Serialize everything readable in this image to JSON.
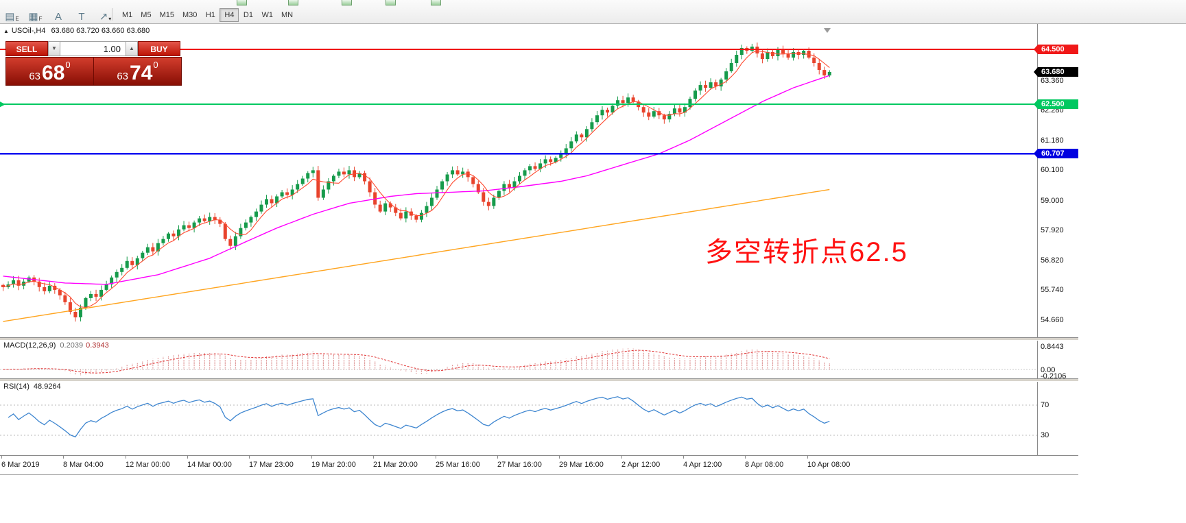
{
  "toolbar": {
    "icons": [
      {
        "name": "indicators-e-icon",
        "glyph": "▤",
        "sub": "E"
      },
      {
        "name": "grid-f-icon",
        "glyph": "▦",
        "sub": "F"
      },
      {
        "name": "text-a-icon",
        "glyph": "A",
        "sub": ""
      },
      {
        "name": "textbox-t-icon",
        "glyph": "T",
        "sub": ""
      },
      {
        "name": "shapes-dropdown-icon",
        "glyph": "↗",
        "sub": "▾"
      }
    ],
    "timeframes": [
      "M1",
      "M5",
      "M15",
      "M30",
      "H1",
      "H4",
      "D1",
      "W1",
      "MN"
    ],
    "selected_timeframe": "H4"
  },
  "chart": {
    "collapse_icon": "▲",
    "symbol_title": "USOil-,H4",
    "ohlc": "63.680 63.720 63.660 63.680"
  },
  "trade_panel": {
    "sell_label": "SELL",
    "buy_label": "BUY",
    "volume_value": "1.00",
    "volume_down_icon": "▼",
    "volume_up_icon": "▲",
    "sell_price_prefix": "63",
    "sell_price_big": "68",
    "sell_price_sup": "0",
    "buy_price_prefix": "63",
    "buy_price_big": "74",
    "buy_price_sup": "0"
  },
  "annotation": {
    "text": "多空转折点62.5",
    "color": "#ff1212"
  },
  "price_axis": {
    "grid_labels": [
      {
        "text": "63.360",
        "price": 63.36
      },
      {
        "text": "62.280",
        "price": 62.28
      },
      {
        "text": "61.180",
        "price": 61.18
      },
      {
        "text": "60.100",
        "price": 60.1
      },
      {
        "text": "59.000",
        "price": 59.0
      },
      {
        "text": "57.920",
        "price": 57.92
      },
      {
        "text": "56.820",
        "price": 56.82
      },
      {
        "text": "55.740",
        "price": 55.74
      },
      {
        "text": "54.660",
        "price": 54.66
      }
    ],
    "tags": [
      {
        "text": "64.500",
        "price": 64.5,
        "bg": "#f01818"
      },
      {
        "text": "63.680",
        "price": 63.68,
        "bg": "#000000"
      },
      {
        "text": "62.500",
        "price": 62.5,
        "bg": "#00c860"
      },
      {
        "text": "60.707",
        "price": 60.707,
        "bg": "#0000e0"
      }
    ]
  },
  "macd_panel": {
    "name": "MACD(12,26,9)",
    "value_main": "0.2039",
    "value_signal": "0.3943",
    "axis_labels": [
      {
        "text": "0.8443",
        "value": 0.8443
      },
      {
        "text": "0.00",
        "value": 0
      },
      {
        "text": "-0.2106",
        "value": -0.2106
      }
    ]
  },
  "rsi_panel": {
    "name": "RSI(14)",
    "value": "48.9264",
    "levels": [
      {
        "text": "70",
        "value": 70
      },
      {
        "text": "30",
        "value": 30
      }
    ]
  },
  "time_axis": {
    "ticks": [
      {
        "i": 0,
        "label": "6 Mar 2019"
      },
      {
        "i": 12,
        "label": "8 Mar 04:00"
      },
      {
        "i": 24,
        "label": "12 Mar 00:00"
      },
      {
        "i": 36,
        "label": "14 Mar 00:00"
      },
      {
        "i": 48,
        "label": "17 Mar 23:00"
      },
      {
        "i": 60,
        "label": "19 Mar 20:00"
      },
      {
        "i": 72,
        "label": "21 Mar 20:00"
      },
      {
        "i": 84,
        "label": "25 Mar 16:00"
      },
      {
        "i": 96,
        "label": "27 Mar 16:00"
      },
      {
        "i": 108,
        "label": "29 Mar 16:00"
      },
      {
        "i": 120,
        "label": "2 Apr 12:00"
      },
      {
        "i": 132,
        "label": "4 Apr 12:00"
      },
      {
        "i": 144,
        "label": "8 Apr 08:00"
      },
      {
        "i": 156,
        "label": "10 Apr 08:00"
      }
    ]
  },
  "chart_data": {
    "type": "candlestick",
    "title": "USOil-,H4",
    "symbol": "USOil-",
    "timeframe": "H4",
    "ylim": [
      54.3,
      64.95
    ],
    "hlines": [
      64.5,
      62.5,
      60.707
    ],
    "colors": {
      "up": "#169b4b",
      "down": "#e8432c",
      "fast_ma": "#ff4a30",
      "mid_ma": "#ff00ff",
      "slow_ma": "#ffa520",
      "macd_hist": "#dc9090",
      "macd_signal": "#e03030",
      "rsi": "#3e86d0",
      "hline_red": "#f01818",
      "hline_green": "#00c860",
      "hline_blue": "#0000f0"
    },
    "closes": [
      55.85,
      55.95,
      56.1,
      55.9,
      56.05,
      56.2,
      56.05,
      55.85,
      55.7,
      55.9,
      55.75,
      55.55,
      55.3,
      54.95,
      54.75,
      55.1,
      55.45,
      55.6,
      55.5,
      55.75,
      55.95,
      56.2,
      56.4,
      56.55,
      56.8,
      56.65,
      56.9,
      57.1,
      57.3,
      57.15,
      57.45,
      57.6,
      57.8,
      57.7,
      57.95,
      58.1,
      58.0,
      58.2,
      58.35,
      58.25,
      58.4,
      58.3,
      58.15,
      57.6,
      57.35,
      57.7,
      58.0,
      58.2,
      58.4,
      58.6,
      58.85,
      59.05,
      58.9,
      59.15,
      59.3,
      59.2,
      59.4,
      59.6,
      59.8,
      60.0,
      60.1,
      59.1,
      59.4,
      59.7,
      59.9,
      60.05,
      59.95,
      60.1,
      59.85,
      60.0,
      59.7,
      59.3,
      58.85,
      58.6,
      58.9,
      58.75,
      58.55,
      58.35,
      58.6,
      58.45,
      58.3,
      58.55,
      58.8,
      59.1,
      59.4,
      59.7,
      59.95,
      60.1,
      59.95,
      60.05,
      59.85,
      59.6,
      59.3,
      58.95,
      58.8,
      59.1,
      59.35,
      59.6,
      59.45,
      59.7,
      59.9,
      60.1,
      60.25,
      60.15,
      60.35,
      60.5,
      60.4,
      60.55,
      60.7,
      60.9,
      61.15,
      61.4,
      61.3,
      61.6,
      61.85,
      62.1,
      62.3,
      62.2,
      62.45,
      62.65,
      62.55,
      62.75,
      62.6,
      62.4,
      62.2,
      62.05,
      62.25,
      62.1,
      61.95,
      62.15,
      62.35,
      62.2,
      62.4,
      62.7,
      63.0,
      63.2,
      63.1,
      63.3,
      63.15,
      63.4,
      63.7,
      64.0,
      64.3,
      64.55,
      64.45,
      64.6,
      64.35,
      64.15,
      64.4,
      64.25,
      64.5,
      64.35,
      64.2,
      64.4,
      64.3,
      64.45,
      64.2,
      64.0,
      63.75,
      63.55,
      63.68
    ],
    "mid_ma_anchors": [
      [
        0,
        56.25
      ],
      [
        12,
        56.0
      ],
      [
        20,
        55.95
      ],
      [
        30,
        56.3
      ],
      [
        40,
        56.9
      ],
      [
        47,
        57.5
      ],
      [
        53,
        58.0
      ],
      [
        60,
        58.5
      ],
      [
        67,
        58.9
      ],
      [
        75,
        59.15
      ],
      [
        80,
        59.25
      ],
      [
        93,
        59.35
      ],
      [
        100,
        59.5
      ],
      [
        108,
        59.7
      ],
      [
        113,
        59.9
      ],
      [
        120,
        60.3
      ],
      [
        127,
        60.7
      ],
      [
        133,
        61.2
      ],
      [
        140,
        61.9
      ],
      [
        147,
        62.6
      ],
      [
        153,
        63.1
      ],
      [
        160,
        63.55
      ]
    ],
    "slow_ma_anchors": [
      [
        0,
        54.6
      ],
      [
        20,
        55.2
      ],
      [
        40,
        55.8
      ],
      [
        60,
        56.4
      ],
      [
        80,
        57.0
      ],
      [
        100,
        57.6
      ],
      [
        120,
        58.2
      ],
      [
        140,
        58.8
      ],
      [
        160,
        59.4
      ]
    ]
  }
}
